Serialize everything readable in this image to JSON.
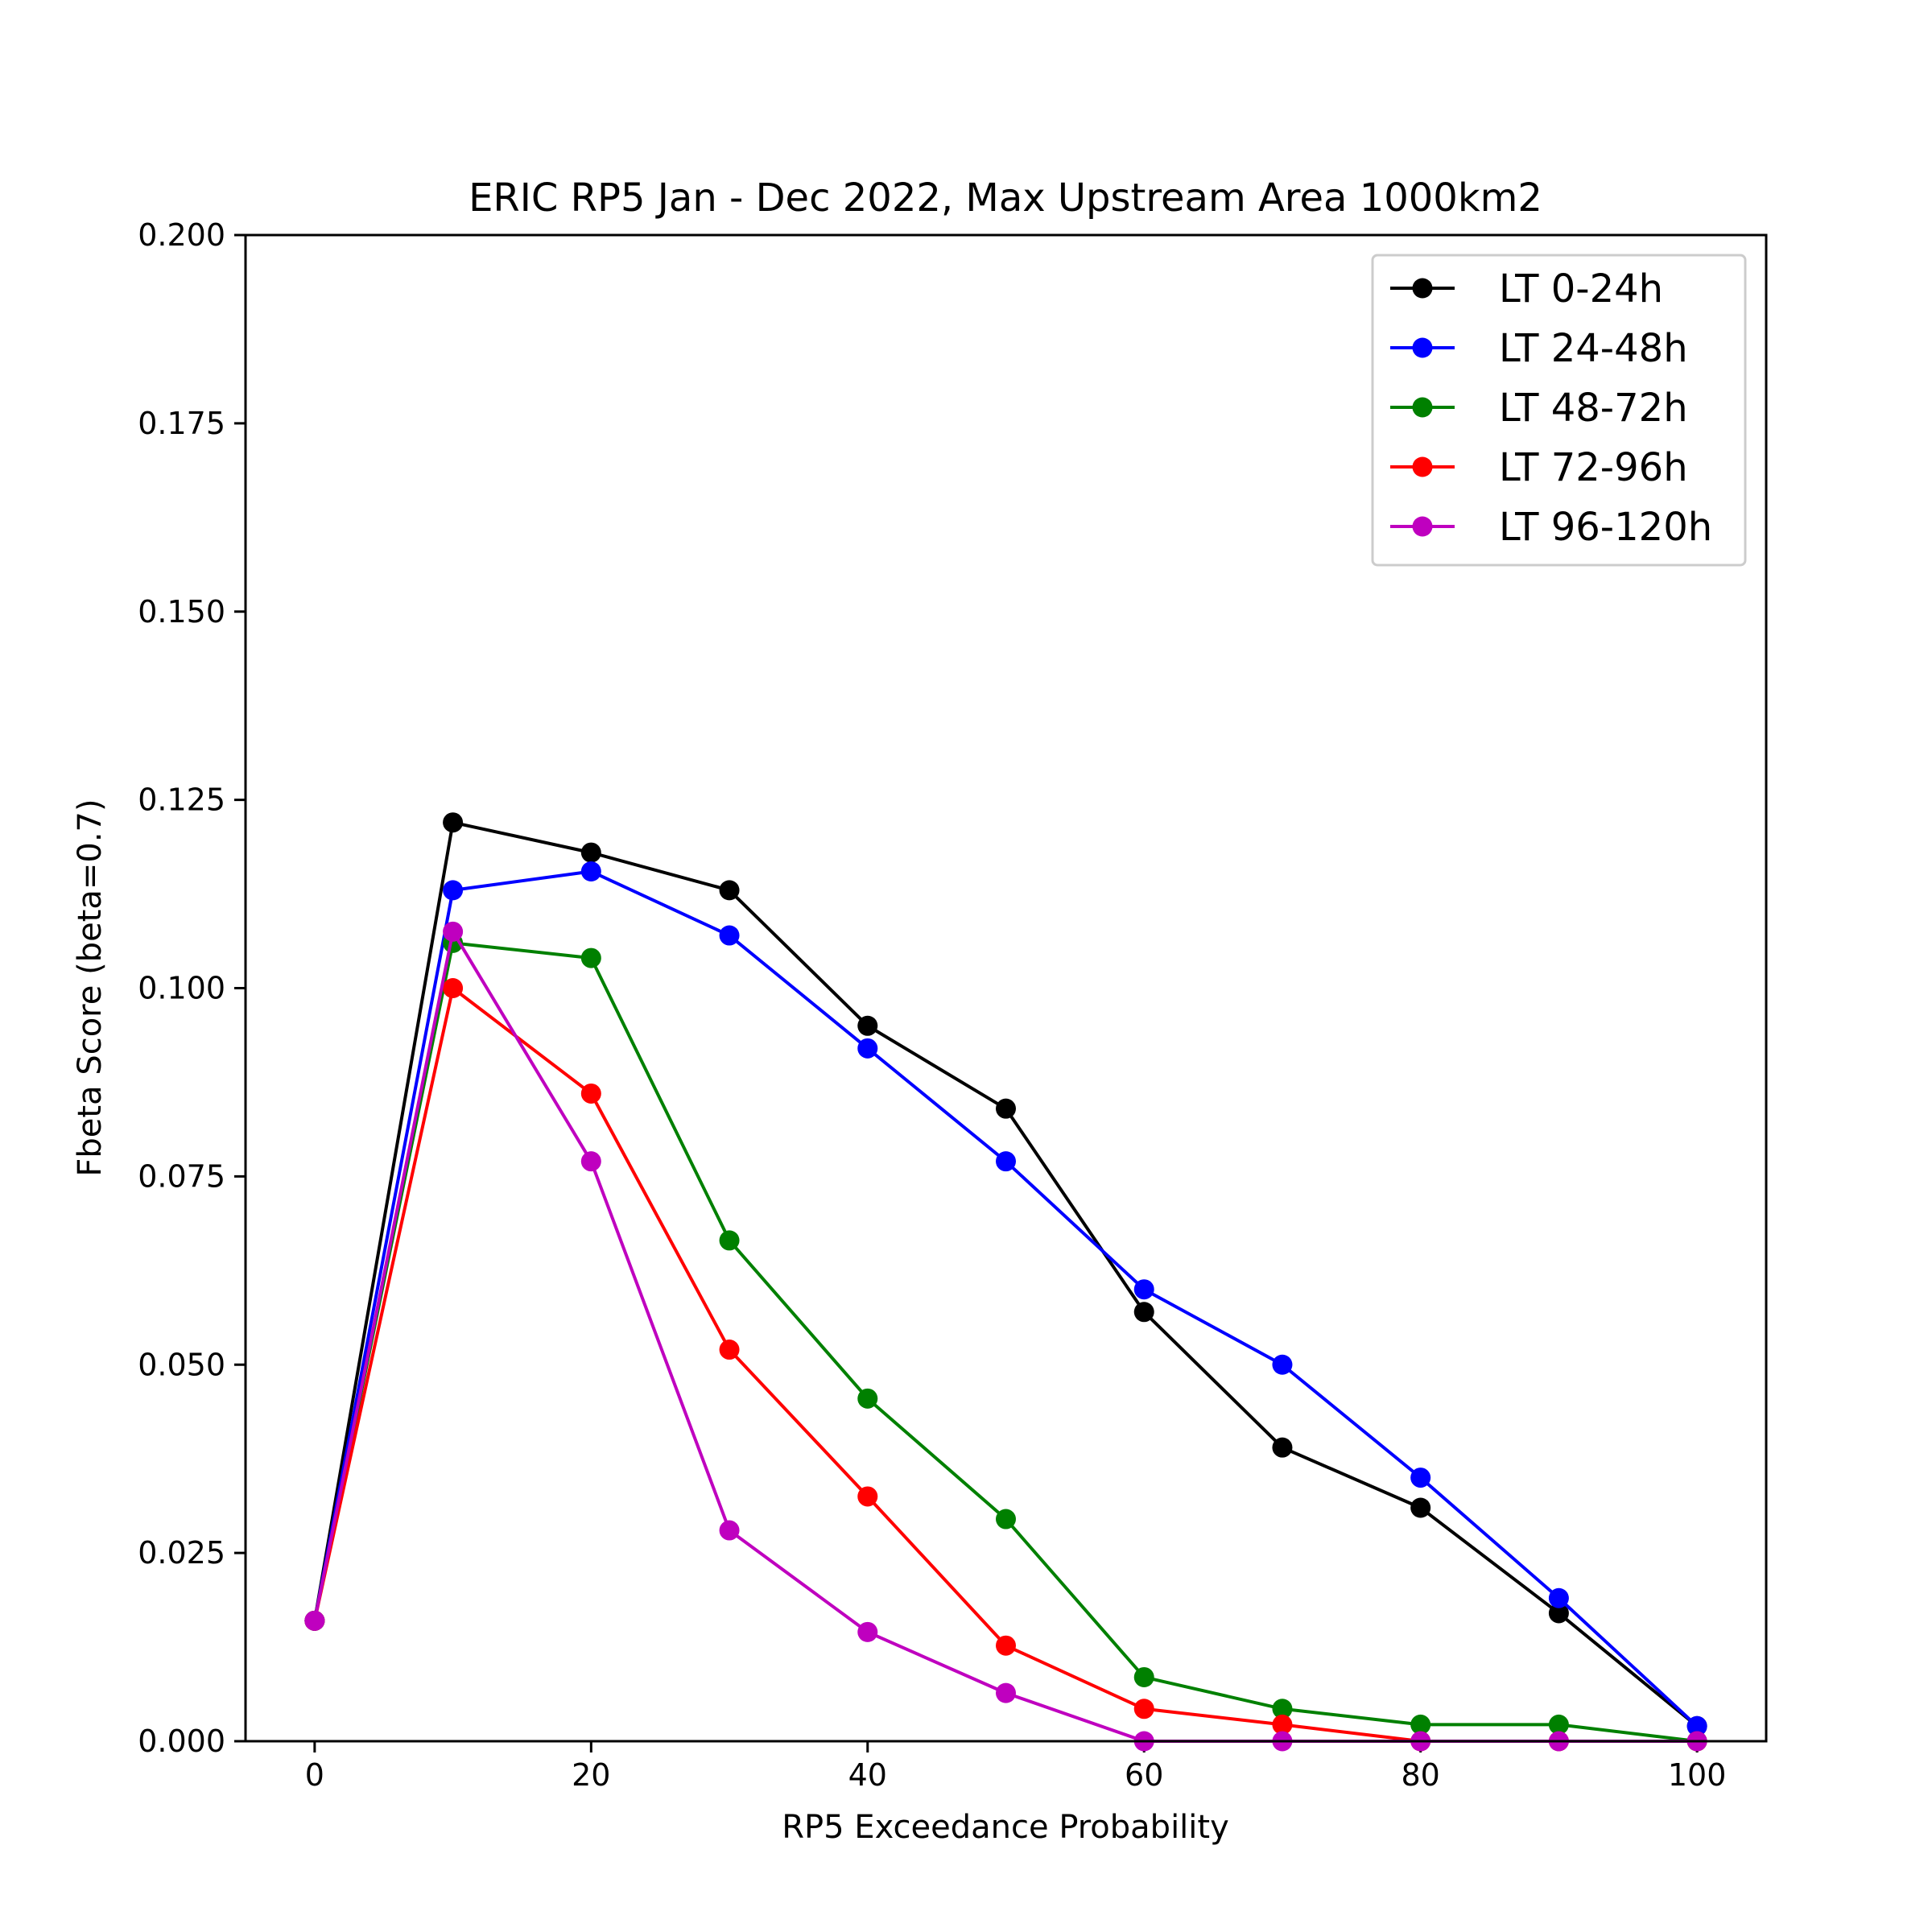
{
  "chart_data": {
    "type": "line",
    "title": "ERIC  RP5 Jan - Dec 2022, Max Upstream Area 1000km2",
    "xlabel": "RP5 Exceedance Probability",
    "ylabel": "Fbeta Score (beta=0.7)",
    "xlim": [
      -5,
      105
    ],
    "ylim": [
      0,
      0.2
    ],
    "xticks": [
      0,
      20,
      40,
      60,
      80,
      100
    ],
    "yticks": [
      0.0,
      0.025,
      0.05,
      0.075,
      0.1,
      0.125,
      0.15,
      0.175,
      0.2
    ],
    "xtick_labels": [
      "0",
      "20",
      "40",
      "60",
      "80",
      "100"
    ],
    "ytick_labels": [
      "0.000",
      "0.025",
      "0.050",
      "0.075",
      "0.100",
      "0.125",
      "0.150",
      "0.175",
      "0.200"
    ],
    "grid": false,
    "legend_position": "top-right",
    "x": [
      0,
      10,
      20,
      30,
      40,
      50,
      60,
      70,
      80,
      90,
      100
    ],
    "series": [
      {
        "name": "LT 0-24h",
        "color": "#000000",
        "values": [
          0.016,
          0.122,
          0.118,
          0.113,
          0.095,
          0.084,
          0.057,
          0.039,
          0.031,
          0.017,
          0.002
        ]
      },
      {
        "name": "LT 24-48h",
        "color": "#0000ff",
        "values": [
          0.016,
          0.113,
          0.1155,
          0.107,
          0.092,
          0.077,
          0.06,
          0.05,
          0.035,
          0.019,
          0.002
        ]
      },
      {
        "name": "LT 48-72h",
        "color": "#008000",
        "values": [
          0.016,
          0.106,
          0.104,
          0.0665,
          0.0455,
          0.0295,
          0.0085,
          0.0043,
          0.0022,
          0.0022,
          0.0
        ]
      },
      {
        "name": "LT 72-96h",
        "color": "#ff0000",
        "values": [
          0.016,
          0.1,
          0.086,
          0.052,
          0.0325,
          0.0127,
          0.0043,
          0.0022,
          0.0,
          0.0,
          0.0
        ]
      },
      {
        "name": "LT 96-120h",
        "color": "#bf00bf",
        "values": [
          0.016,
          0.1075,
          0.077,
          0.028,
          0.0145,
          0.0064,
          0.0,
          0.0,
          0.0,
          0.0,
          0.0
        ]
      }
    ]
  }
}
